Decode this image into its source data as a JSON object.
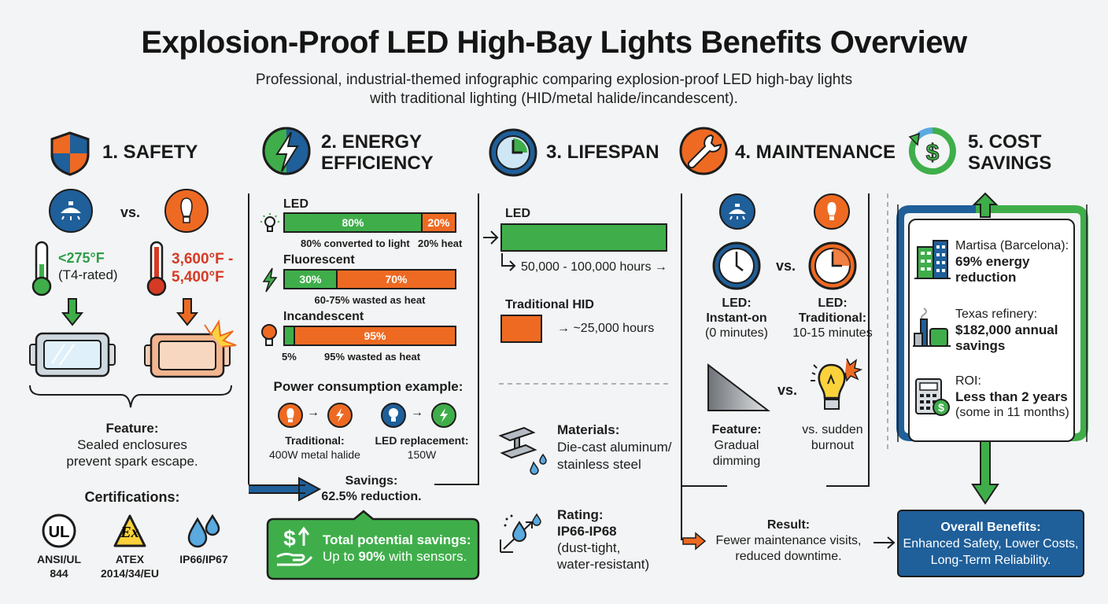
{
  "header": {
    "title": "Explosion-Proof LED High-Bay Lights Benefits Overview",
    "subtitle_line1": "Professional, industrial-themed infographic comparing explosion-proof LED high-bay lights",
    "subtitle_line2": "with traditional lighting (HID/metal halide/incandescent)."
  },
  "colors": {
    "green": "#3fae4a",
    "orange": "#ee6a22",
    "blue": "#1f5f9a",
    "dark": "#1d1d1d"
  },
  "safety": {
    "heading": "1. SAFETY",
    "vs": "vs.",
    "led_temp": "<275°F",
    "led_rating": "(T4-rated)",
    "trad_temp_line1": "3,600°F -",
    "trad_temp_line2": "5,400°F",
    "feature_label": "Feature:",
    "feature_line1": "Sealed enclosures",
    "feature_line2": "prevent spark escape.",
    "cert_heading": "Certifications:",
    "certs": [
      {
        "icon": "ul-icon",
        "line1": "ANSI/UL",
        "line2": "844"
      },
      {
        "icon": "atex-icon",
        "line1": "ATEX",
        "line2": "2014/34/EU"
      },
      {
        "icon": "water-drops-icon",
        "line1": "IP66/IP67",
        "line2": ""
      }
    ]
  },
  "energy": {
    "heading_line1": "2. ENERGY",
    "heading_line2": "EFFICIENCY",
    "bars": [
      {
        "name": "LED",
        "light": 80,
        "heat": 20,
        "light_label": "80%",
        "heat_label": "20%",
        "note_a": "80% converted to light",
        "note_b": "20% heat"
      },
      {
        "name": "Fluorescent",
        "light": 30,
        "heat": 70,
        "light_label": "30%",
        "heat_label": "70%",
        "note_a": "60-75% wasted as heat",
        "note_b": ""
      },
      {
        "name": "Incandescent",
        "light": 5,
        "heat": 95,
        "light_label": "",
        "heat_label": "95%",
        "note_a": "5%",
        "note_b": "95% wasted as heat"
      }
    ],
    "power_heading": "Power consumption example:",
    "trad_label": "Traditional:",
    "trad_value": "400W metal halide",
    "led_label": "LED replacement:",
    "led_value": "150W",
    "savings_label": "Savings:",
    "savings_value": "62.5% reduction.",
    "total_label": "Total potential savings:",
    "total_value_pre": "Up to ",
    "total_value_bold": "90%",
    "total_value_post": " with sensors."
  },
  "lifespan": {
    "heading": "3. LIFESPAN",
    "bars": [
      {
        "name": "LED",
        "hours_label": "50,000 - 100,000 hours",
        "hours_max": 100000
      },
      {
        "name": "Traditional HID",
        "hours_label": "~25,000 hours",
        "hours_max": 25000
      }
    ],
    "materials_label": "Materials:",
    "materials_line1": "Die-cast aluminum/",
    "materials_line2": "stainless steel",
    "rating_label": "Rating:",
    "rating_value": "IP66-IP68",
    "rating_line1": "(dust-tight,",
    "rating_line2": "water-resistant)"
  },
  "maintenance": {
    "heading": "4. MAINTENANCE",
    "vs": "vs.",
    "led_label": "LED:",
    "led_value_line1": "Instant-on",
    "led_value_line2": "(0 minutes)",
    "trad_label_line1": "LED:",
    "trad_label_line2": "Traditional:",
    "trad_value": "10-15 minutes",
    "feature_label": "Feature:",
    "feature_line1": "Gradual",
    "feature_line2": "dimming",
    "burnout_line1": "vs. sudden",
    "burnout_line2": "burnout",
    "result_label": "Result:",
    "result_line1": "Fewer maintenance visits,",
    "result_line2": "reduced downtime."
  },
  "cost": {
    "heading_line1": "5. COST",
    "heading_line2": "SAVINGS",
    "items": [
      {
        "icon": "building-icon",
        "line1": "Martisa (Barcelona):",
        "bold1": "69% energy",
        "bold2": "reduction"
      },
      {
        "icon": "refinery-icon",
        "line1": "Texas refinery:",
        "bold1": "$182,000 annual",
        "bold2": "savings"
      },
      {
        "icon": "calculator-icon",
        "line1": "ROI:",
        "bold1": "Less than 2 years",
        "bold2": "(some in 11 months)"
      }
    ],
    "overall_label": "Overall Benefits:",
    "overall_line1": "Enhanced Safety, Lower Costs,",
    "overall_line2": "Long-Term Reliability."
  }
}
